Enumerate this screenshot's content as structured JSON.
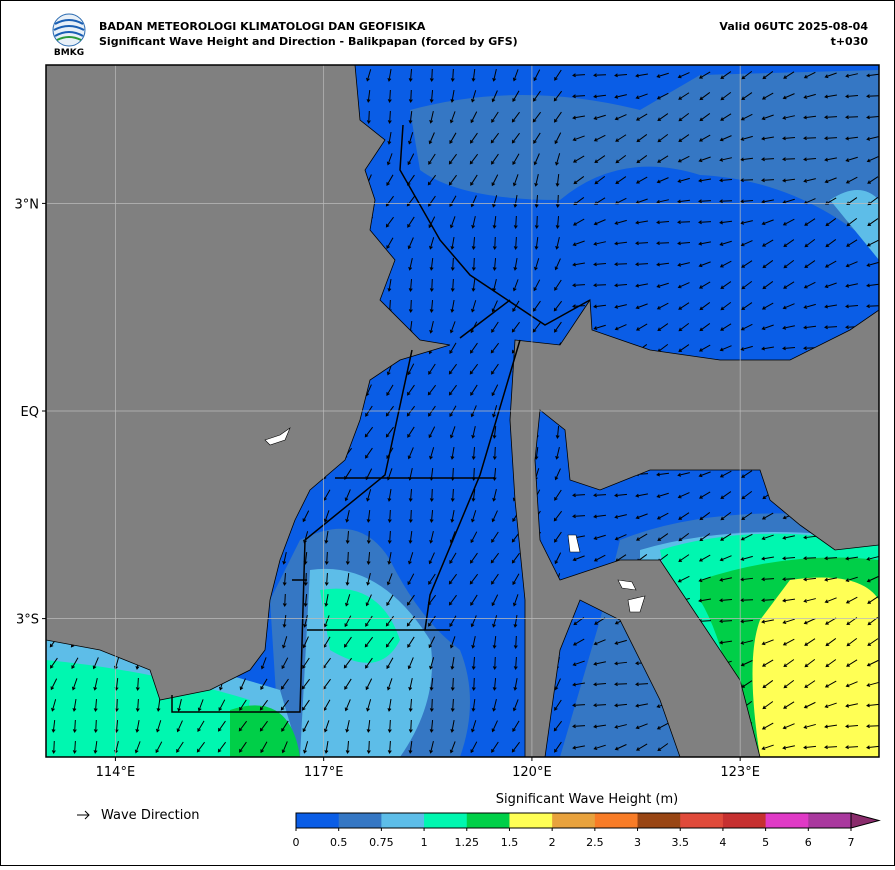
{
  "header": {
    "agency": "BADAN METEOROLOGI KLIMATOLOGI DAN GEOFISIKA",
    "title": "Significant Wave Height and Direction - Balikpapan (forced by GFS)",
    "valid": "Valid 06UTC 2025-08-04",
    "lead": "t+030",
    "logo": "BMKG"
  },
  "chart_data": {
    "type": "map",
    "xlim": [
      113,
      125
    ],
    "ylim": [
      -5,
      5
    ],
    "xticks": [
      {
        "value": 114,
        "label": "114°E"
      },
      {
        "value": 117,
        "label": "117°E"
      },
      {
        "value": 120,
        "label": "120°E"
      },
      {
        "value": 123,
        "label": "123°E"
      }
    ],
    "yticks": [
      {
        "value": 3,
        "label": "3°N"
      },
      {
        "value": 0,
        "label": "EQ"
      },
      {
        "value": -3,
        "label": "3°S"
      }
    ],
    "grid": true,
    "legend": "Wave Direction",
    "colorbar": {
      "label": "Significant Wave Height (m)",
      "ticks": [
        0,
        0.5,
        0.75,
        1,
        1.25,
        1.5,
        2,
        2.5,
        3,
        3.5,
        4,
        5,
        6,
        7
      ],
      "colors": [
        "#0a5de6",
        "#3577c4",
        "#5dbde8",
        "#00f7b0",
        "#00cf48",
        "#ffff55",
        "#e8a23d",
        "#f87c27",
        "#994614",
        "#e04a3a",
        "#c63030",
        "#e03ac6",
        "#a9389e"
      ],
      "extend_color": "#8a2c6c"
    }
  }
}
